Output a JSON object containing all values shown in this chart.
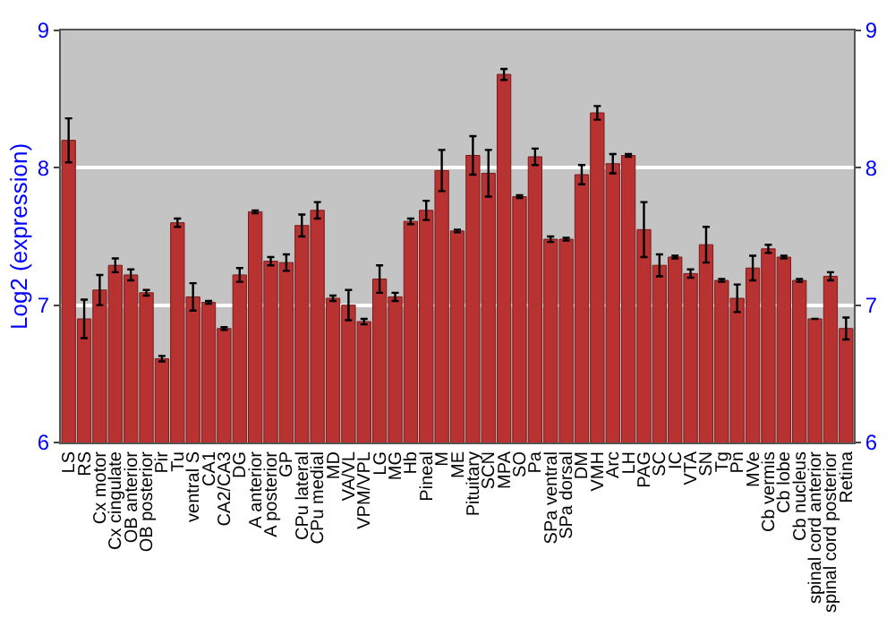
{
  "chart_data": {
    "type": "bar",
    "ylabel": "Log2 (expression)",
    "categories": [
      "LS",
      "RS",
      "Cx motor",
      "Cx cingulate",
      "OB anterior",
      "OB posterior",
      "Pir",
      "Tu",
      "ventral S",
      "CA1",
      "CA2/CA3",
      "DG",
      "A anterior",
      "A posterior",
      "GP",
      "CPu lateral",
      "CPu medial",
      "MD",
      "VA/VL",
      "VPM/VPL",
      "LG",
      "MG",
      "Hb",
      "Pineal",
      "M",
      "ME",
      "Pituitary",
      "SCN",
      "MPA",
      "SO",
      "Pa",
      "SPa ventral",
      "SPa dorsal",
      "DM",
      "VMH",
      "Arc",
      "LH",
      "PAG",
      "SC",
      "IC",
      "VTA",
      "SN",
      "Tg",
      "Pn",
      "MVe",
      "Cb vermis",
      "Cb lobe",
      "Cb nucleus",
      "spinal cord anterior",
      "spinal cord posterior",
      "Retina"
    ],
    "values": [
      8.2,
      6.9,
      7.11,
      7.29,
      7.22,
      7.09,
      6.61,
      7.6,
      7.06,
      7.02,
      6.83,
      7.22,
      7.68,
      7.32,
      7.31,
      7.58,
      7.69,
      7.05,
      7.0,
      6.88,
      7.19,
      7.06,
      7.61,
      7.69,
      7.98,
      7.54,
      8.09,
      7.96,
      8.68,
      7.79,
      8.08,
      7.48,
      7.48,
      7.95,
      8.4,
      8.03,
      8.09,
      7.55,
      7.29,
      7.35,
      7.23,
      7.44,
      7.18,
      7.05,
      7.27,
      7.41,
      7.35,
      7.18,
      6.9,
      7.21,
      6.83
    ],
    "errors": [
      0.16,
      0.14,
      0.11,
      0.05,
      0.04,
      0.02,
      0.02,
      0.03,
      0.1,
      0.01,
      0.01,
      0.05,
      0.01,
      0.03,
      0.06,
      0.08,
      0.06,
      0.02,
      0.11,
      0.02,
      0.1,
      0.03,
      0.02,
      0.07,
      0.15,
      0.01,
      0.14,
      0.17,
      0.04,
      0.01,
      0.06,
      0.02,
      0.01,
      0.07,
      0.05,
      0.07,
      0.01,
      0.2,
      0.08,
      0.01,
      0.03,
      0.13,
      0.01,
      0.1,
      0.09,
      0.03,
      0.01,
      0.01,
      null,
      0.03,
      0.08
    ],
    "color": "#b83232",
    "ylim": [
      6,
      9
    ],
    "yticks": [
      6,
      7,
      8,
      9
    ],
    "y2lim": [
      6,
      9
    ],
    "y2ticks": [
      6,
      7,
      8,
      9
    ],
    "grid": "y"
  }
}
